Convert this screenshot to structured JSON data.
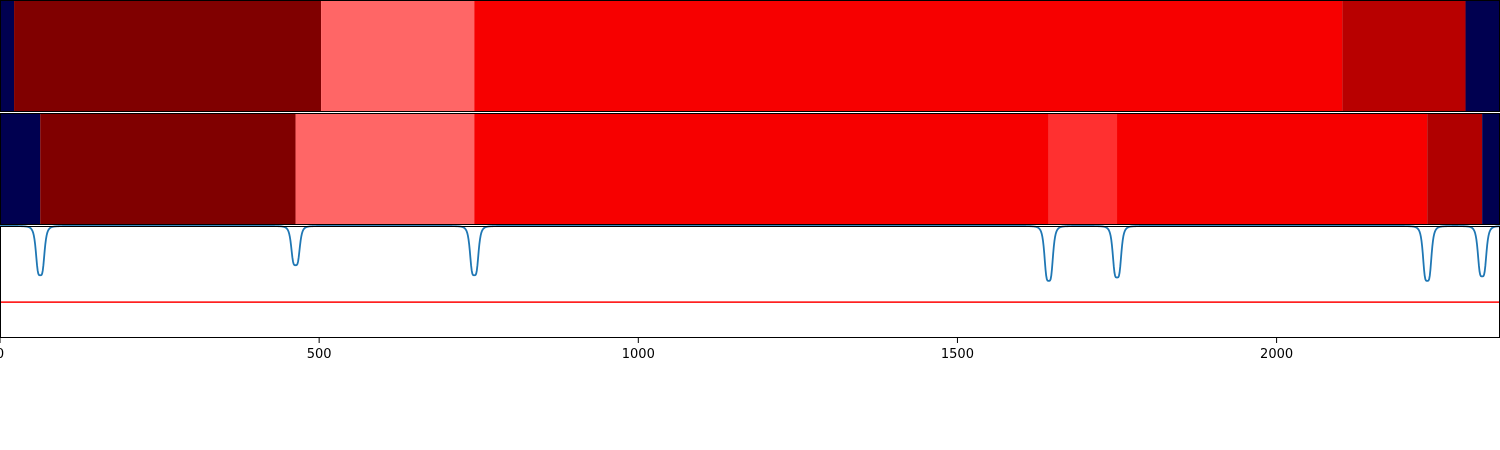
{
  "chart_data": {
    "type": "heatmap",
    "x_range": [
      0,
      2350
    ],
    "x_ticks": [
      0,
      500,
      1000,
      1500,
      2000
    ],
    "tracks": [
      {
        "segments": [
          {
            "start": 0,
            "end": 22,
            "color": "#000050"
          },
          {
            "start": 22,
            "end": 503,
            "color": "#800000"
          },
          {
            "start": 503,
            "end": 743,
            "color": "#ff6666"
          },
          {
            "start": 743,
            "end": 2103,
            "color": "#f70000"
          },
          {
            "start": 2103,
            "end": 2296,
            "color": "#b80000"
          },
          {
            "start": 2296,
            "end": 2350,
            "color": "#000050"
          }
        ]
      },
      {
        "segments": [
          {
            "start": 0,
            "end": 63,
            "color": "#000050"
          },
          {
            "start": 63,
            "end": 463,
            "color": "#800000"
          },
          {
            "start": 463,
            "end": 743,
            "color": "#ff6666"
          },
          {
            "start": 743,
            "end": 1643,
            "color": "#f70000"
          },
          {
            "start": 1643,
            "end": 1750,
            "color": "#ff3030"
          },
          {
            "start": 1750,
            "end": 2236,
            "color": "#f70000"
          },
          {
            "start": 2236,
            "end": 2322,
            "color": "#b00000"
          },
          {
            "start": 2322,
            "end": 2350,
            "color": "#000050"
          }
        ]
      }
    ],
    "signal": {
      "color": "#1f77b4",
      "baseline": 1.0,
      "dips": [
        {
          "x": 63,
          "depth": 0.44
        },
        {
          "x": 463,
          "depth": 0.35
        },
        {
          "x": 743,
          "depth": 0.44
        },
        {
          "x": 1643,
          "depth": 0.49
        },
        {
          "x": 1750,
          "depth": 0.46
        },
        {
          "x": 2236,
          "depth": 0.49
        },
        {
          "x": 2322,
          "depth": 0.45
        }
      ],
      "threshold": {
        "value": 0.32,
        "color": "#ff0000"
      },
      "ylim": [
        0,
        1
      ]
    }
  }
}
